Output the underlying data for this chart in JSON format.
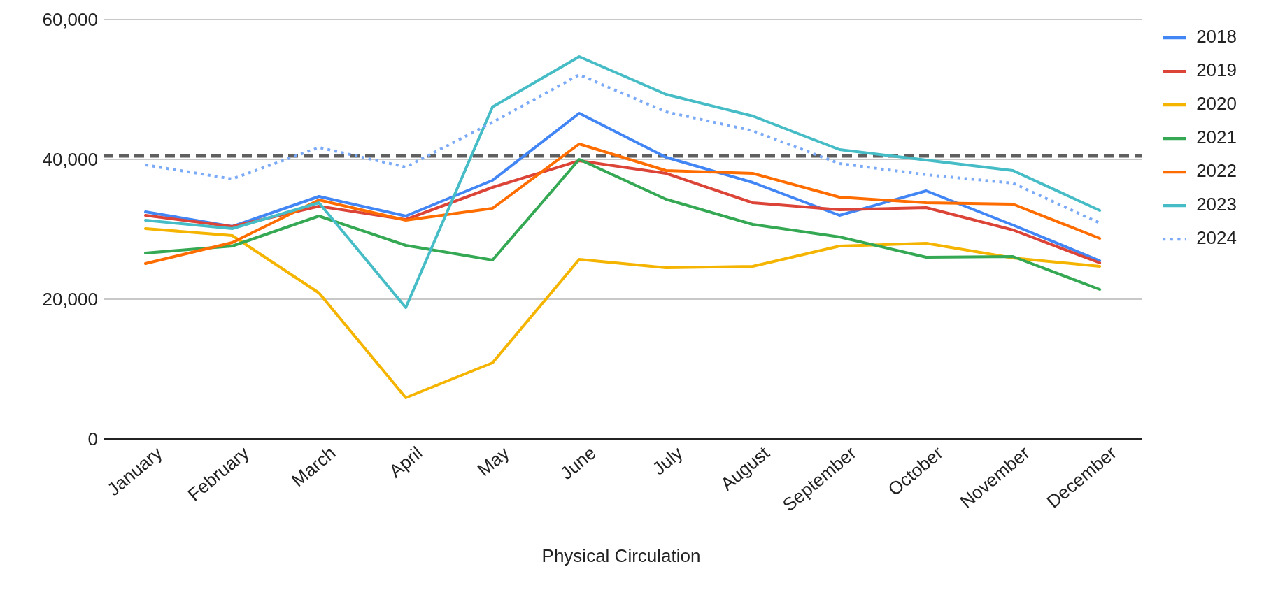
{
  "chart_data": {
    "type": "line",
    "xlabel": "Physical Circulation",
    "categories": [
      "January",
      "February",
      "March",
      "April",
      "May",
      "June",
      "July",
      "August",
      "September",
      "October",
      "November",
      "December"
    ],
    "series": [
      {
        "name": "2018",
        "color": "#4285f4",
        "values": [
          32500,
          30400,
          34700,
          31900,
          37000,
          46600,
          40300,
          36700,
          32000,
          35500,
          30600,
          25500
        ]
      },
      {
        "name": "2019",
        "color": "#db4437",
        "values": [
          32000,
          30400,
          33300,
          31400,
          36000,
          39800,
          38000,
          33800,
          32800,
          33100,
          29900,
          25200
        ]
      },
      {
        "name": "2020",
        "color": "#f4b400",
        "values": [
          30100,
          29100,
          20900,
          5900,
          10900,
          25700,
          24500,
          24700,
          27600,
          28000,
          25900,
          24700
        ]
      },
      {
        "name": "2021",
        "color": "#34a853",
        "values": [
          26600,
          27600,
          31900,
          27700,
          25600,
          40000,
          34300,
          30700,
          28900,
          26000,
          26100,
          21400
        ]
      },
      {
        "name": "2022",
        "color": "#ff6d01",
        "values": [
          25100,
          28100,
          34200,
          31300,
          33000,
          42200,
          38400,
          38000,
          34600,
          33800,
          33600,
          28700
        ]
      },
      {
        "name": "2023",
        "color": "#46bdc6",
        "values": [
          31300,
          30100,
          33800,
          18800,
          47500,
          54700,
          49300,
          46200,
          41400,
          39900,
          38400,
          32700
        ]
      },
      {
        "name": "2024",
        "color": "#7baaf7",
        "line_style": "dotted",
        "values": [
          39200,
          37200,
          41700,
          38900,
          45300,
          52100,
          46800,
          44100,
          39400,
          37800,
          36600,
          30900
        ]
      }
    ],
    "ylim": [
      0,
      60000
    ],
    "yticks": [
      {
        "value": 0,
        "label": "0"
      },
      {
        "value": 20000,
        "label": "20,000"
      },
      {
        "value": 40000,
        "label": "40,000"
      },
      {
        "value": 60000,
        "label": "60,000"
      }
    ],
    "ref_lines": [
      {
        "axis": "y",
        "value": 40500,
        "color": "#5f5f5f",
        "line_style": "dashed"
      }
    ],
    "grid": "y",
    "legend": "right",
    "marker": "none",
    "line_style": "solid"
  }
}
